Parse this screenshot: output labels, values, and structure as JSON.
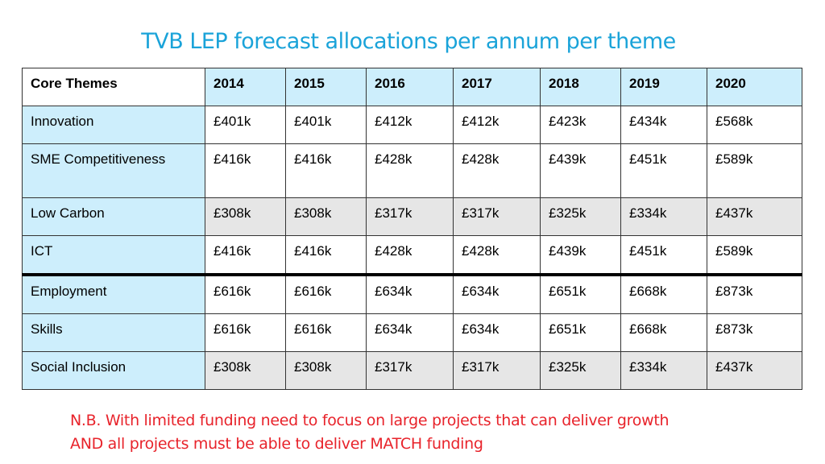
{
  "title": "TVB LEP forecast allocations per annum per theme",
  "table": {
    "headers": [
      "Core Themes",
      "2014",
      "2015",
      "2016",
      "2017",
      "2018",
      "2019",
      "2020"
    ],
    "rows": [
      {
        "theme": "Innovation",
        "values": [
          "£401k",
          "£401k",
          "£412k",
          "£412k",
          "£423k",
          "£434k",
          "£568k"
        ]
      },
      {
        "theme": "SME Competitiveness",
        "values": [
          "£416k",
          "£416k",
          "£428k",
          "£428k",
          "£439k",
          "£451k",
          "£589k"
        ]
      },
      {
        "theme": "Low Carbon",
        "values": [
          "£308k",
          "£308k",
          "£317k",
          "£317k",
          "£325k",
          "£334k",
          "£437k"
        ]
      },
      {
        "theme": "ICT",
        "values": [
          "£416k",
          "£416k",
          "£428k",
          "£428k",
          "£439k",
          "£451k",
          "£589k"
        ]
      },
      {
        "theme": "Employment",
        "values": [
          "£616k",
          "£616k",
          "£634k",
          "£634k",
          "£651k",
          "£668k",
          "£873k"
        ]
      },
      {
        "theme": "Skills",
        "values": [
          "£616k",
          "£616k",
          "£634k",
          "£634k",
          "£651k",
          "£668k",
          "£873k"
        ]
      },
      {
        "theme": "Social Inclusion",
        "values": [
          "£308k",
          "£308k",
          "£317k",
          "£317k",
          "£325k",
          "£334k",
          "£437k"
        ]
      }
    ]
  },
  "note": {
    "line1": "N.B. With limited funding need to focus on large projects that can deliver growth",
    "line2": "AND all projects must be able to deliver MATCH funding"
  },
  "colors": {
    "title": "#1aa3d9",
    "header_fill": "#cdeefc",
    "grey_fill": "#e6e6e6",
    "note": "#e8232b"
  }
}
